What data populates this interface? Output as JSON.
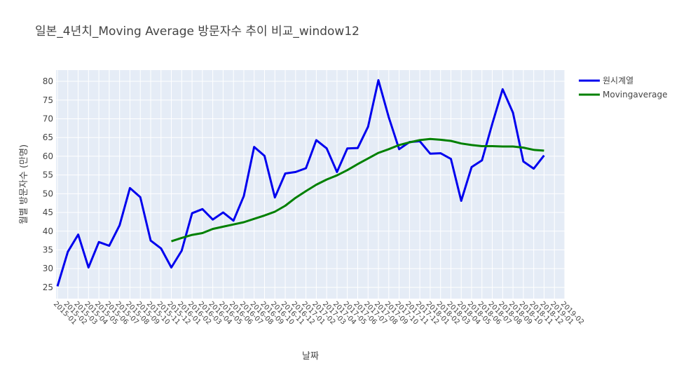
{
  "chart_data": {
    "type": "line",
    "title": "일본_4년치_Moving Average 방문자수 추이 비교_window12",
    "xlabel": "날짜",
    "ylabel": "월별 방문자수 (만명)",
    "ylim": [
      22,
      83
    ],
    "yticks": [
      25,
      30,
      35,
      40,
      45,
      50,
      55,
      60,
      65,
      70,
      75,
      80
    ],
    "x": [
      "2015-01",
      "2015-02",
      "2015-03",
      "2015-04",
      "2015-05",
      "2015-06",
      "2015-07",
      "2015-08",
      "2015-09",
      "2015-10",
      "2015-11",
      "2015-12",
      "2016-01",
      "2016-02",
      "2016-03",
      "2016-04",
      "2016-05",
      "2016-06",
      "2016-07",
      "2016-08",
      "2016-09",
      "2016-10",
      "2016-11",
      "2016-12",
      "2017-01",
      "2017-02",
      "2017-03",
      "2017-04",
      "2017-05",
      "2017-06",
      "2017-07",
      "2017-08",
      "2017-09",
      "2017-10",
      "2017-11",
      "2017-12",
      "2018-01",
      "2018-02",
      "2018-03",
      "2018-04",
      "2018-05",
      "2018-06",
      "2018-07",
      "2018-08",
      "2018-09",
      "2018-10",
      "2018-11",
      "2018-12",
      "2019-01",
      "2019-02"
    ],
    "grid": true,
    "legend_position": "top-right",
    "series": [
      {
        "name": "원시계열",
        "color": "#0000ee",
        "values": [
          25.3,
          34.5,
          39.1,
          30.3,
          37.1,
          36.1,
          41.6,
          51.5,
          49.1,
          37.5,
          35.4,
          30.3,
          34.8,
          44.8,
          45.9,
          43.1,
          45.0,
          42.8,
          49.4,
          62.5,
          60.1,
          49.0,
          55.4,
          55.8,
          56.8,
          64.3,
          62.1,
          55.8,
          62.1,
          62.2,
          67.9,
          80.3,
          70.4,
          61.9,
          63.8,
          64.0,
          60.7,
          60.8,
          59.3,
          48.1,
          57.1,
          58.9,
          68.7,
          77.9,
          71.6,
          58.6,
          56.7,
          60.2,
          null,
          null
        ]
      },
      {
        "name": "Movingaverage",
        "color": "#008000",
        "values": [
          null,
          null,
          null,
          null,
          null,
          null,
          null,
          null,
          null,
          null,
          null,
          37.3,
          38.2,
          39.0,
          39.5,
          40.6,
          41.2,
          41.8,
          42.4,
          43.3,
          44.2,
          45.2,
          46.8,
          48.9,
          50.7,
          52.4,
          53.8,
          54.9,
          56.3,
          57.9,
          59.4,
          60.9,
          61.9,
          63.0,
          63.7,
          64.3,
          64.6,
          64.4,
          64.1,
          63.4,
          63.0,
          62.7,
          62.7,
          62.6,
          62.6,
          62.3,
          61.7,
          61.5,
          null,
          null
        ]
      }
    ]
  }
}
